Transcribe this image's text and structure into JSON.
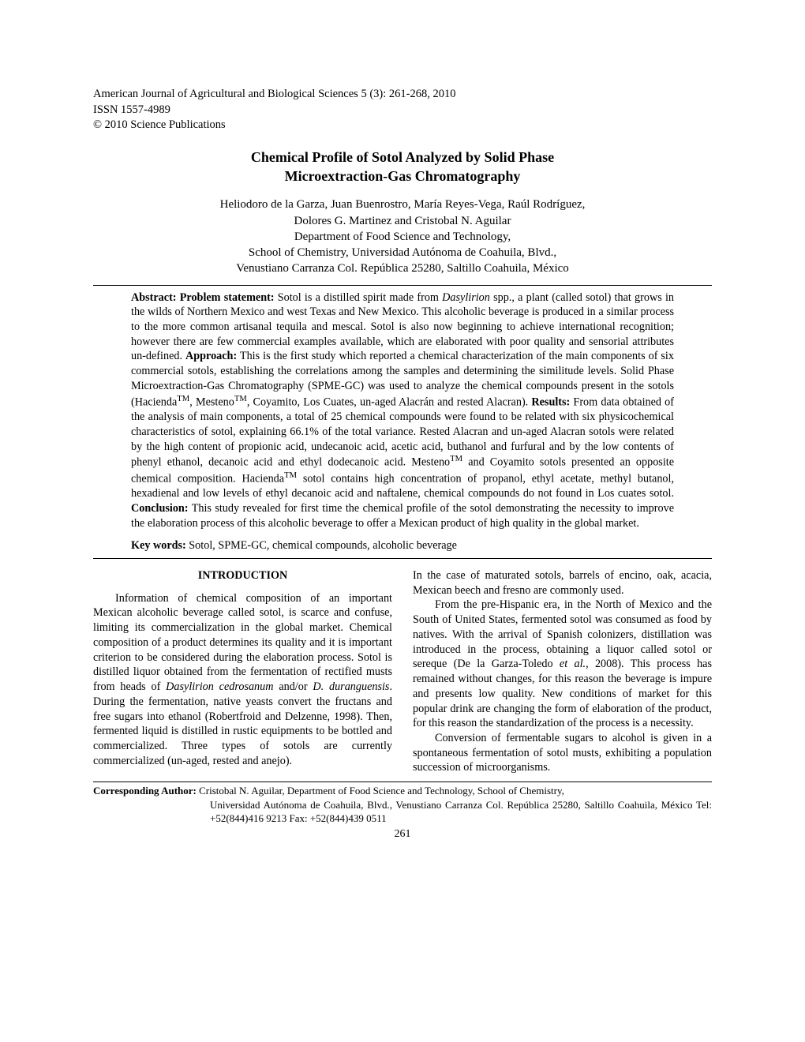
{
  "journal": {
    "line1": "American Journal of Agricultural and Biological Sciences 5 (3): 261-268, 2010",
    "line2": "ISSN 1557-4989",
    "line3": "© 2010 Science Publications"
  },
  "title": {
    "line1": "Chemical Profile of Sotol Analyzed by Solid Phase",
    "line2": "Microextraction-Gas Chromatography"
  },
  "authors": {
    "line1": "Heliodoro de la Garza, Juan Buenrostro, María Reyes-Vega, Raúl Rodríguez,",
    "line2": "Dolores G. Martinez and Cristobal N. Aguilar",
    "line3": "Department of Food Science and Technology,",
    "line4": "School of Chemistry, Universidad Autónoma de Coahuila, Blvd.,",
    "line5": "Venustiano Carranza Col. República 25280, Saltillo Coahuila, México"
  },
  "abstract": {
    "label_abstract": "Abstract:",
    "label_problem": "Problem statement:",
    "text_problem": " Sotol is a distilled spirit made from ",
    "italic1": "Dasylirion",
    "text_problem2": " spp., a plant (called sotol) that grows in the wilds of Northern Mexico and west Texas and New Mexico. This alcoholic beverage is produced in a similar process to the more common artisanal tequila and mescal. Sotol is also now beginning to achieve international recognition; however there are few commercial examples available, which are elaborated with poor quality and sensorial attributes un-defined. ",
    "label_approach": "Approach:",
    "text_approach": " This is the first study which reported a chemical characterization of the main components of six commercial sotols, establishing the correlations among the samples and determining the similitude levels. Solid Phase Microextraction-Gas Chromatography (SPME-GC) was used to analyze the chemical compounds present in the sotols (Hacienda",
    "tm1": "TM",
    "text_approach2": ", Mesteno",
    "tm2": "TM",
    "text_approach3": ", Coyamito, Los Cuates, un-aged Alacrán and rested Alacran). ",
    "label_results": "Results:",
    "text_results": " From data obtained of the analysis of main components, a total of 25 chemical compounds were found to be related with six physicochemical characteristics of sotol, explaining 66.1% of the total variance. Rested Alacran and un-aged Alacran sotols were related by the high content of propionic acid, undecanoic acid, acetic acid, buthanol and furfural and by the low contents of phenyl ethanol, decanoic acid and ethyl dodecanoic acid. Mesteno",
    "tm3": "TM",
    "text_results2": " and Coyamito sotols presented an opposite chemical composition. Hacienda",
    "tm4": "TM",
    "text_results3": " sotol contains high concentration of propanol, ethyl acetate, methyl butanol, hexadienal and low levels of ethyl decanoic acid and naftalene, chemical compounds do not found in Los cuates sotol. ",
    "label_conclusion": "Conclusion:",
    "text_conclusion": " This study revealed for first time the chemical profile of the sotol demonstrating the necessity to improve the elaboration process of this alcoholic beverage to offer a Mexican product of high quality in the global market."
  },
  "keywords": {
    "label": "Key words:",
    "text": " Sotol, SPME-GC, chemical compounds, alcoholic beverage"
  },
  "intro_heading": "INTRODUCTION",
  "col_left": {
    "p1a": "Information of chemical composition of an important Mexican alcoholic beverage called sotol, is scarce and confuse, limiting its commercialization in the global market. Chemical composition of a product determines its quality and it is important criterion to be considered during the elaboration process. Sotol is distilled liquor obtained from the fermentation of rectified musts from heads of ",
    "p1_it1": "Dasylirion cedrosanum",
    "p1b": " and/or ",
    "p1_it2": "D. duranguensis",
    "p1c": ". During the fermentation, native yeasts convert the fructans and free sugars into ethanol (Robertfroid and Delzenne, 1998). Then, fermented liquid is distilled in rustic equipments to be bottled and commercialized. Three types of sotols are currently commercialized (un-aged, rested and anejo)."
  },
  "col_right": {
    "p1": "In the case of maturated sotols, barrels of encino, oak, acacia, Mexican beech and fresno are commonly used.",
    "p2a": "From the pre-Hispanic era, in the North of Mexico and the South of United States, fermented sotol was consumed as food by natives. With the arrival of Spanish colonizers, distillation was introduced in the process, obtaining a liquor called sotol or sereque (De la Garza-Toledo ",
    "p2_it": "et al.",
    "p2b": ", 2008). This process has remained without changes, for this reason the beverage is impure and presents low quality. New conditions of market for this popular drink are changing the form of elaboration of the product, for this reason the standardization of the process is a necessity.",
    "p3": "Conversion of fermentable sugars to alcohol is given in a spontaneous fermentation of sotol musts, exhibiting a population succession of microorganisms."
  },
  "corresponding": {
    "label": "Corresponding Author:",
    "line1": " Cristobal N. Aguilar, Department of Food Science and Technology, School of Chemistry,",
    "line2": "Universidad Autónoma de Coahuila, Blvd., Venustiano Carranza Col. República 25280, Saltillo Coahuila, México  Tel: +52(844)416 9213  Fax: +52(844)439 0511"
  },
  "page_number": "261"
}
